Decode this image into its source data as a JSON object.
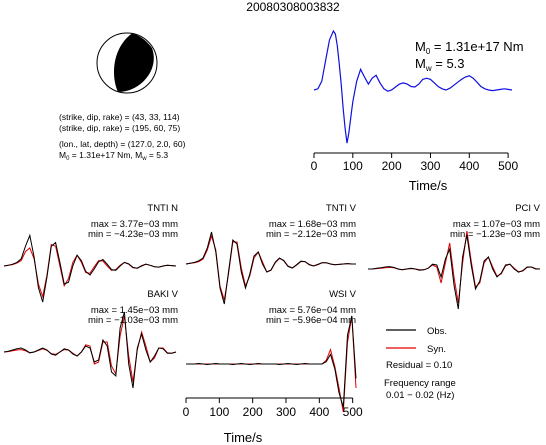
{
  "title": "20080308003832",
  "mechanism": {
    "lines": [
      "(strike, dip, rake) = (43, 33, 114)",
      "(strike, dip, rake) = (195, 60, 75)",
      "(lon., lat, depth) = (127.0, 2.0, 60)"
    ],
    "m0_label": "M",
    "m0_sub": "0",
    "m0_value": " = 1.31e+17 Nm, M",
    "mw_sub": "w",
    "mw_value": " = 5.3"
  },
  "stf": {
    "m0_label": "M",
    "m0_sub": "0",
    "m0_value": " = 1.31e+17 Nm",
    "mw_label": "M",
    "mw_sub": "w",
    "mw_value": " = 5.3",
    "color": "#1010e0"
  },
  "legend": {
    "obs": "Obs.",
    "syn": "Syn.",
    "obs_color": "#000000",
    "syn_color": "#e00000",
    "residual": "Residual = 0.10",
    "freq_title": "Frequency range",
    "freq_range": "0.01 − 0.02 (Hz)"
  },
  "chart_data": [
    {
      "type": "line",
      "name": "source-time-function",
      "xlabel": "Time/s",
      "xlim": [
        0,
        510
      ],
      "xticks": [
        0,
        100,
        200,
        300,
        400,
        500
      ],
      "x": [
        0,
        10,
        20,
        30,
        40,
        50,
        55,
        60,
        65,
        70,
        75,
        80,
        85,
        90,
        95,
        100,
        110,
        120,
        130,
        140,
        150,
        160,
        170,
        180,
        190,
        200,
        210,
        220,
        230,
        240,
        250,
        260,
        270,
        280,
        290,
        300,
        310,
        320,
        330,
        340,
        350,
        360,
        370,
        380,
        390,
        400,
        410,
        420,
        430,
        440,
        450,
        460,
        470,
        480,
        490,
        500,
        510
      ],
      "y": [
        0.0,
        0.02,
        0.15,
        0.5,
        0.85,
        1.0,
        0.95,
        0.75,
        0.45,
        0.1,
        -0.3,
        -0.65,
        -0.9,
        -0.72,
        -0.45,
        -0.2,
        0.15,
        0.35,
        0.22,
        0.1,
        0.2,
        0.25,
        0.12,
        0.02,
        -0.02,
        0.0,
        0.05,
        0.1,
        0.12,
        0.1,
        0.06,
        0.05,
        0.1,
        0.18,
        0.2,
        0.18,
        0.12,
        0.06,
        0.02,
        0.0,
        0.03,
        0.08,
        0.13,
        0.18,
        0.22,
        0.24,
        0.2,
        0.13,
        0.06,
        0.02,
        0.0,
        -0.01,
        0.0,
        0.01,
        0.02,
        0.01,
        0.0
      ]
    },
    {
      "type": "line",
      "station": "TNTI N",
      "max_label": "max = 3.77e−03 mm",
      "min_label": "min = −4.23e−03 mm",
      "obs": [
        0,
        0.02,
        0.05,
        0.1,
        0.2,
        0.55,
        0.85,
        0.25,
        -0.6,
        -1.0,
        -0.3,
        0.55,
        0.65,
        0.1,
        -0.5,
        -0.45,
        0.0,
        0.3,
        0.15,
        -0.15,
        -0.25,
        -0.08,
        0.12,
        0.18,
        0.05,
        -0.1,
        -0.12,
        0.0,
        0.1,
        0.06,
        -0.04,
        -0.06,
        0.0,
        0.05,
        0.02,
        -0.02,
        -0.03,
        0.0,
        0.02,
        0.01,
        0.0
      ],
      "syn": [
        0,
        0.02,
        0.04,
        0.08,
        0.15,
        0.4,
        0.5,
        0.2,
        -0.5,
        -0.85,
        -0.25,
        0.6,
        0.55,
        0.0,
        -0.55,
        -0.35,
        0.1,
        0.3,
        0.1,
        -0.18,
        -0.2,
        -0.02,
        0.15,
        0.14,
        0.0,
        -0.12,
        -0.1,
        0.02,
        0.1,
        0.05,
        -0.05,
        -0.06,
        0.01,
        0.05,
        0.02,
        -0.02,
        -0.03,
        0.0,
        0.02,
        0.01,
        0.0
      ]
    },
    {
      "type": "line",
      "station": "TNTI V",
      "max_label": "max = 1.68e−03 mm",
      "min_label": "min = −2.12e−03 mm",
      "obs": [
        0,
        0.02,
        0.04,
        0.08,
        0.15,
        0.4,
        0.8,
        0.3,
        -0.6,
        -1.0,
        -0.2,
        0.6,
        0.5,
        -0.2,
        -0.6,
        -0.25,
        0.2,
        0.3,
        0.0,
        -0.2,
        -0.15,
        0.05,
        0.15,
        0.08,
        -0.06,
        -0.1,
        -0.02,
        0.07,
        0.06,
        -0.02,
        -0.05,
        -0.01,
        0.03,
        0.03,
        0.0,
        -0.02,
        -0.01,
        0.0,
        0.01,
        0.0,
        0.0
      ],
      "syn": [
        0,
        0.02,
        0.03,
        0.06,
        0.12,
        0.35,
        0.7,
        0.35,
        -0.55,
        -0.9,
        -0.25,
        0.55,
        0.55,
        -0.1,
        -0.55,
        -0.3,
        0.15,
        0.3,
        0.05,
        -0.2,
        -0.16,
        0.03,
        0.14,
        0.09,
        -0.05,
        -0.1,
        -0.03,
        0.06,
        0.06,
        -0.01,
        -0.05,
        -0.02,
        0.03,
        0.03,
        0.0,
        -0.02,
        -0.01,
        0.0,
        0.01,
        0.0,
        0.0
      ]
    },
    {
      "type": "line",
      "station": "PCI V",
      "max_label": "max = 1.07e−03 mm",
      "min_label": "min = −1.23e−03 mm",
      "obs": [
        0,
        0.0,
        0.02,
        0.03,
        0.05,
        0.06,
        0.04,
        0.0,
        -0.02,
        0.0,
        0.02,
        0.0,
        -0.03,
        -0.02,
        0.02,
        0.12,
        0.1,
        -0.2,
        0.25,
        0.5,
        -0.4,
        -1.0,
        0.3,
        0.85,
        0.1,
        -0.5,
        -0.3,
        0.2,
        0.3,
        0.0,
        -0.2,
        -0.1,
        0.1,
        0.12,
        0.0,
        -0.08,
        -0.04,
        0.05,
        0.05,
        0.0,
        0.0
      ],
      "syn": [
        0,
        0.0,
        0.01,
        0.02,
        0.03,
        0.04,
        0.03,
        0.0,
        -0.02,
        0.0,
        0.01,
        0.0,
        -0.02,
        -0.02,
        0.02,
        0.1,
        0.05,
        -0.35,
        0.15,
        0.65,
        -0.2,
        -0.85,
        0.15,
        0.95,
        0.2,
        -0.45,
        -0.35,
        0.15,
        0.3,
        0.05,
        -0.18,
        -0.12,
        0.08,
        0.12,
        0.02,
        -0.07,
        -0.05,
        0.04,
        0.05,
        0.01,
        0.0
      ]
    },
    {
      "type": "line",
      "station": "BAKI V",
      "max_label": "max = 1.45e−03 mm",
      "min_label": "min = −1.03e−03 mm",
      "obs": [
        0,
        0.02,
        0.05,
        0.08,
        0.1,
        0.05,
        -0.02,
        0.0,
        0.05,
        0.1,
        0.05,
        -0.05,
        -0.08,
        0.0,
        0.08,
        0.05,
        -0.05,
        -0.1,
        0.0,
        0.15,
        0.1,
        -0.25,
        -0.2,
        0.3,
        0.15,
        -0.5,
        -0.6,
        0.6,
        1.0,
        -0.3,
        -0.9,
        0.1,
        0.45,
        0.05,
        -0.25,
        -0.1,
        0.1,
        0.08,
        -0.03,
        -0.03,
        0.0
      ],
      "syn": [
        0,
        0.01,
        0.03,
        0.05,
        0.06,
        0.03,
        -0.02,
        0.0,
        0.04,
        0.08,
        0.04,
        -0.04,
        -0.06,
        0.0,
        0.06,
        0.05,
        -0.03,
        -0.1,
        0.0,
        0.18,
        0.15,
        -0.3,
        -0.25,
        0.25,
        0.25,
        -0.35,
        -0.55,
        0.4,
        0.9,
        -0.1,
        -0.75,
        0.05,
        0.5,
        0.15,
        -0.25,
        -0.15,
        0.1,
        0.1,
        -0.02,
        -0.03,
        0.0
      ]
    },
    {
      "type": "line",
      "station": "WSI V",
      "max_label": "max = 5.76e−04 mm",
      "min_label": "min = −5.96e−04 mm",
      "xlabel": "Time/s",
      "xlim": [
        0,
        510
      ],
      "xticks": [
        0,
        100,
        200,
        300,
        400,
        500
      ],
      "obs": [
        0,
        0.0,
        0.0,
        0.01,
        0.0,
        -0.01,
        0.0,
        0.01,
        0.0,
        0.0,
        0.0,
        -0.01,
        0.0,
        0.01,
        0.0,
        -0.01,
        0.0,
        0.01,
        0.0,
        0.0,
        0.0,
        0.0,
        -0.01,
        0.0,
        0.01,
        0.0,
        -0.01,
        0.0,
        0.01,
        0.0,
        0.0,
        0.0,
        0.0,
        0.05,
        0.2,
        -0.1,
        -0.6,
        -0.9,
        0.6,
        1.0,
        -0.3
      ],
      "syn": [
        0,
        0.0,
        0.0,
        0.0,
        0.0,
        0.0,
        0.0,
        0.0,
        0.0,
        0.0,
        0.0,
        0.0,
        0.0,
        0.0,
        0.0,
        0.0,
        0.0,
        0.0,
        0.0,
        0.0,
        0.0,
        0.0,
        0.0,
        0.0,
        0.0,
        0.0,
        0.0,
        0.0,
        0.0,
        0.0,
        0.0,
        0.0,
        0.0,
        0.08,
        0.3,
        -0.05,
        -0.5,
        -1.0,
        0.45,
        1.0,
        -0.5
      ]
    }
  ]
}
